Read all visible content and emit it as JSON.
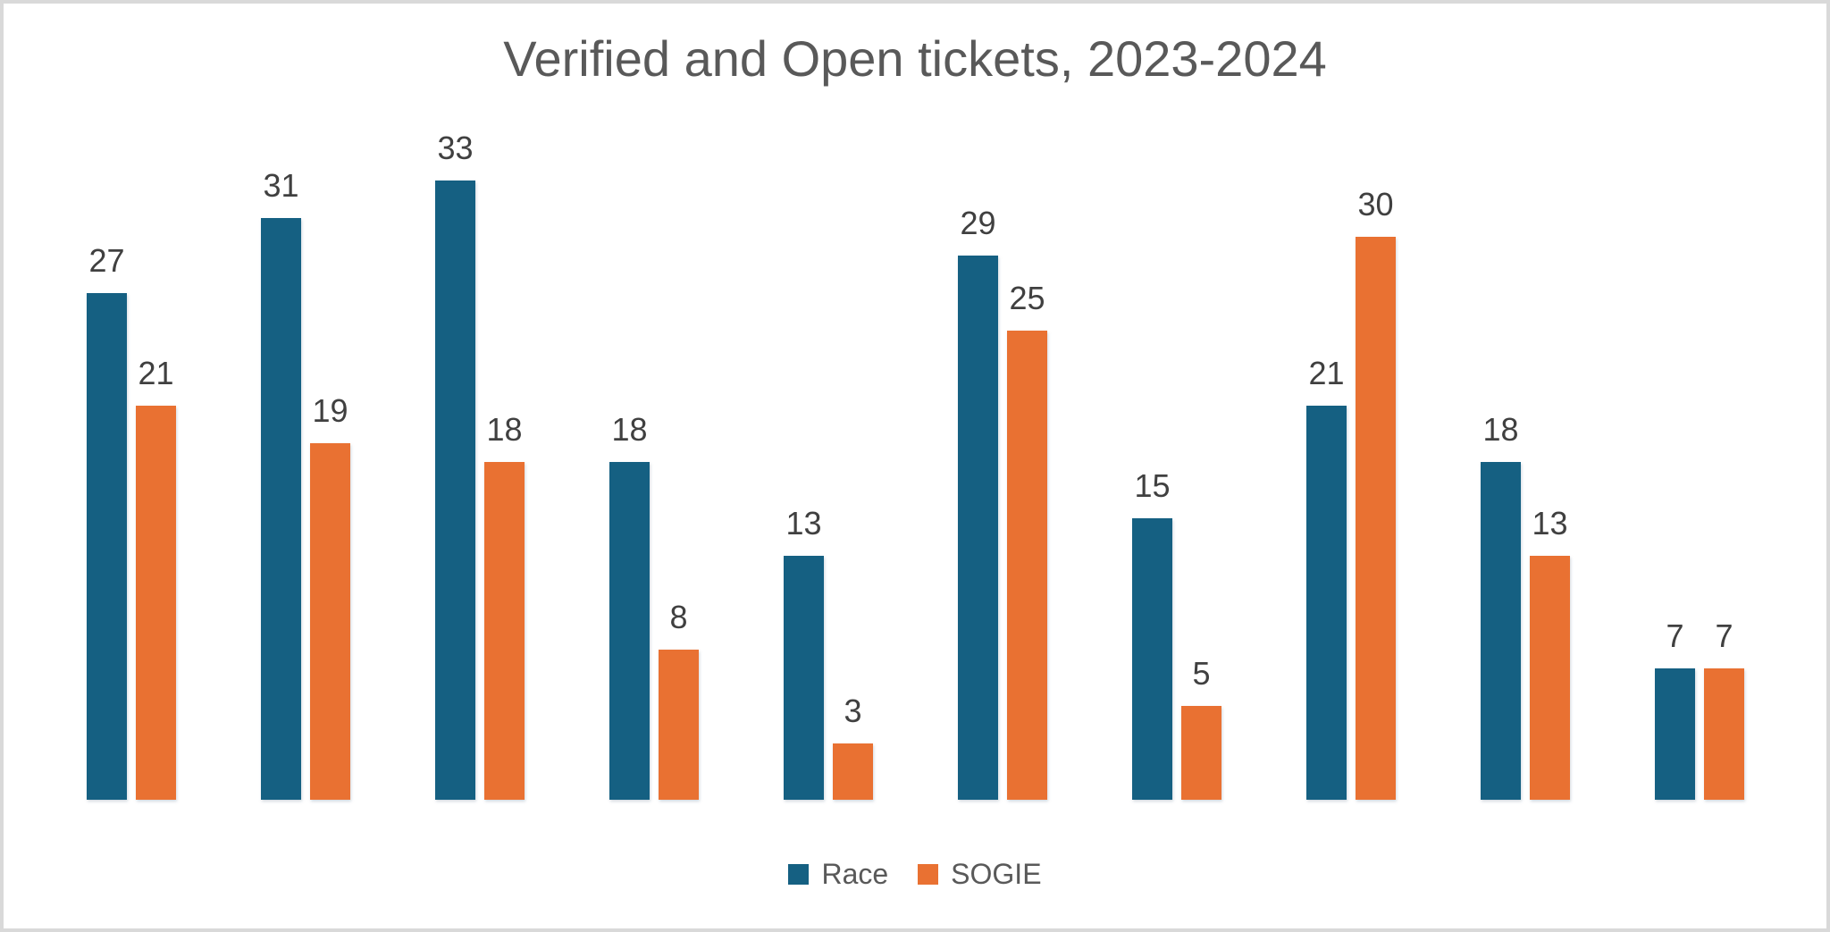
{
  "title": "Verified and Open tickets, 2023-2024",
  "colors": {
    "race": "#156082",
    "sogie": "#E97132",
    "title_text": "#595959",
    "data_label_text": "#404040",
    "legend_text": "#595959",
    "frame_border": "#D9D9D9",
    "background": "#FFFFFF"
  },
  "legend": {
    "items": [
      {
        "label": "Race",
        "color": "#156082"
      },
      {
        "label": "SOGIE",
        "color": "#E97132"
      }
    ]
  },
  "chart_data": {
    "type": "bar",
    "title": "Verified and Open tickets, 2023-2024",
    "series": [
      {
        "name": "Race",
        "color": "#156082",
        "values": [
          27,
          31,
          33,
          18,
          13,
          29,
          15,
          21,
          18,
          7
        ]
      },
      {
        "name": "SOGIE",
        "color": "#E97132",
        "values": [
          21,
          19,
          18,
          8,
          3,
          25,
          5,
          30,
          13,
          7
        ]
      }
    ],
    "n_groups": 10,
    "data_labels": true,
    "x_axis_labels": "none",
    "y_axis": "hidden",
    "grid": false,
    "ylim": [
      0,
      35
    ],
    "legend_position": "bottom-center"
  }
}
